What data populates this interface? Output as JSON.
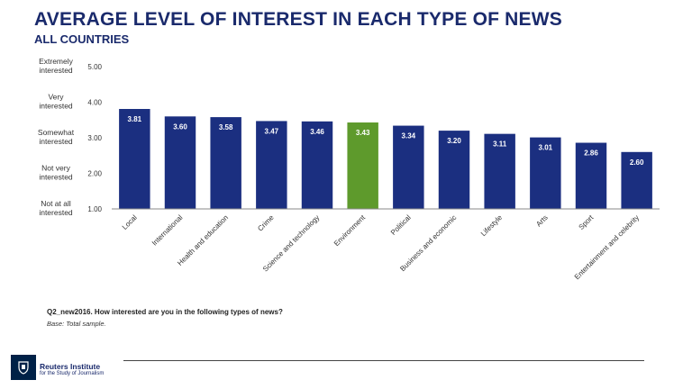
{
  "title": "AVERAGE LEVEL OF INTEREST IN EACH TYPE OF NEWS",
  "subtitle": "ALL COUNTRIES",
  "chart_data": {
    "type": "bar",
    "title": "AVERAGE LEVEL OF INTEREST IN EACH TYPE OF NEWS",
    "subtitle": "ALL COUNTRIES",
    "categories": [
      "Local",
      "International",
      "Health and education",
      "Crime",
      "Science and technology",
      "Environment",
      "Political",
      "Business and economic",
      "Lifestyle",
      "Arts",
      "Sport",
      "Entertainment and celebrity"
    ],
    "values": [
      3.81,
      3.6,
      3.58,
      3.47,
      3.46,
      3.43,
      3.34,
      3.2,
      3.11,
      3.01,
      2.86,
      2.6
    ],
    "value_labels": [
      "3.81",
      "3.60",
      "3.58",
      "3.47",
      "3.46",
      "3.43",
      "3.34",
      "3.20",
      "3.11",
      "3.01",
      "2.86",
      "2.60"
    ],
    "highlight_index": 5,
    "ylim": [
      1,
      5
    ],
    "yticks": [
      1,
      2,
      3,
      4,
      5
    ],
    "ytick_labels": [
      "1.00",
      "2.00",
      "3.00",
      "4.00",
      "5.00"
    ],
    "ycategory_labels": [
      [
        "Not at all",
        "interested"
      ],
      [
        "Not very",
        "interested"
      ],
      [
        "Somewhat",
        "interested"
      ],
      [
        "Very",
        "interested"
      ],
      [
        "Extremely",
        "interested"
      ]
    ],
    "colors": {
      "bar": "#1b2f80",
      "highlight": "#5e9a2c",
      "axis": "#888888"
    },
    "grid": false,
    "legend": "none"
  },
  "footnote": {
    "question": "Q2_new2016. How interested are you in the following types of news?",
    "base": "Base: Total sample."
  },
  "footer": {
    "brand_name": "Reuters Institute",
    "brand_sub": "for the Study of Journalism"
  }
}
